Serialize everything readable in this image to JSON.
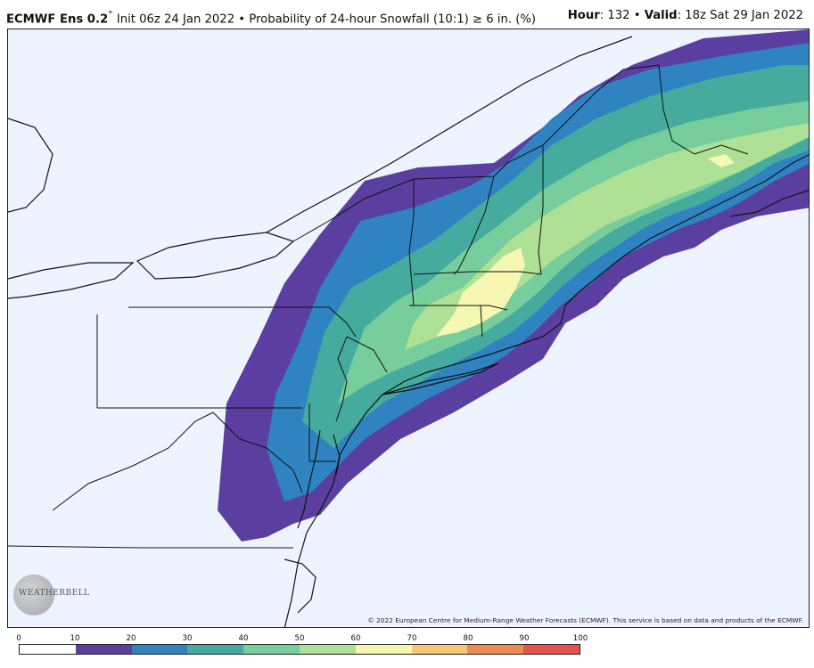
{
  "header": {
    "model": "ECMWF Ens 0.2",
    "degree": "°",
    "init": "Init 06z 24 Jan 2022",
    "bullet": "•",
    "product": "Probability of 24-hour Snowfall (10:1)",
    "threshold": "≥ 6 in. (%)",
    "hour_label": "Hour",
    "hour_value": ": 132",
    "valid_label": "Valid",
    "valid_value": ": 18z Sat 29 Jan 2022"
  },
  "map": {
    "copyright": "© 2022 European Centre for Medium-Range Weather Forecasts (ECMWF). This service is based on data and products of the ECMWF.",
    "logo_text": "WEATHERBELL",
    "background_color": "#eef4ff",
    "land_outline_color": "#111111"
  },
  "legend": {
    "ticks": [
      "0",
      "10",
      "20",
      "30",
      "40",
      "50",
      "60",
      "70",
      "80",
      "90",
      "100"
    ],
    "colors": [
      "#ffffff",
      "#5b3fa0",
      "#2f83c0",
      "#45ab9e",
      "#77cd9b",
      "#aee196",
      "#f6f7b2",
      "#f6c871",
      "#ef8b4e",
      "#e4544a",
      "#a7153f"
    ]
  }
}
